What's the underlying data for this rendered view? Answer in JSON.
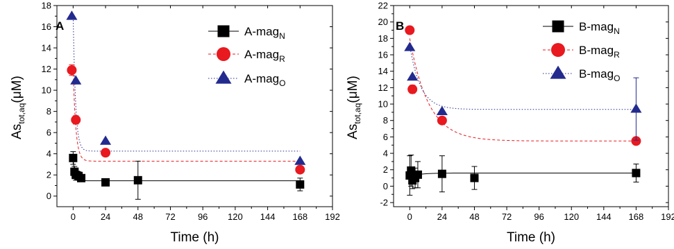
{
  "chart_data": [
    {
      "type": "scatter",
      "panel_label": "A",
      "xlabel": "Time (h)",
      "ylabel_main": "As",
      "ylabel_sub": "tot,aq",
      "ylabel_unit": "(μM)",
      "xlim": [
        -12,
        192
      ],
      "ylim": [
        -1,
        18
      ],
      "xticks": [
        0,
        24,
        48,
        72,
        96,
        120,
        144,
        168,
        192
      ],
      "yticks": [
        0,
        2,
        4,
        6,
        8,
        10,
        12,
        14,
        16,
        18
      ],
      "legend_position": "top-right",
      "series": [
        {
          "name": "A-mag",
          "name_sub": "N",
          "marker": "square",
          "color": "#000000",
          "fit_color": "#000000",
          "fit_dash": "",
          "points": [
            {
              "x": 0,
              "y": 3.6,
              "err": 0.6
            },
            {
              "x": 1,
              "y": 2.3,
              "err": 0.5
            },
            {
              "x": 2,
              "y": 2.0,
              "err": 0.5
            },
            {
              "x": 4,
              "y": 1.9,
              "err": 0.4
            },
            {
              "x": 6,
              "y": 1.7,
              "err": 0.3
            },
            {
              "x": 24,
              "y": 1.3,
              "err": 0
            },
            {
              "x": 48,
              "y": 1.5,
              "err": 1.8
            },
            {
              "x": 168,
              "y": 1.1,
              "err": 0.6
            }
          ],
          "fit": {
            "plateau": 1.45,
            "amplitude": 2.0,
            "tau": 1.5
          }
        },
        {
          "name": "A-mag",
          "name_sub": "R",
          "marker": "circle",
          "color": "#e8191f",
          "fit_color": "#e8191f",
          "fit_dash": "4,3",
          "points": [
            {
              "x": -1,
              "y": 11.9,
              "err": 0.5
            },
            {
              "x": 2,
              "y": 7.2,
              "err": 0.4
            },
            {
              "x": 24,
              "y": 4.1,
              "err": 0
            },
            {
              "x": 168,
              "y": 2.5,
              "err": 0
            }
          ],
          "fit": {
            "plateau": 3.3,
            "amplitude": 8.7,
            "tau": 2.0
          }
        },
        {
          "name": "A-mag",
          "name_sub": "O",
          "marker": "triangle",
          "color": "#232a8e",
          "fit_color": "#232a8e",
          "fit_dash": "1.5,2.5",
          "points": [
            {
              "x": -1,
              "y": 17.0,
              "err": 0
            },
            {
              "x": 2,
              "y": 10.9,
              "err": 0
            },
            {
              "x": 24,
              "y": 5.2,
              "err": 0
            },
            {
              "x": 168,
              "y": 3.3,
              "err": 0
            }
          ],
          "fit": {
            "plateau": 4.25,
            "amplitude": 12.9,
            "tau": 1.8
          }
        }
      ]
    },
    {
      "type": "scatter",
      "panel_label": "B",
      "xlabel": "Time (h)",
      "ylabel_main": "As",
      "ylabel_sub": "tot,aq",
      "ylabel_unit": "(μM)",
      "xlim": [
        -12,
        192
      ],
      "ylim": [
        -2.5,
        22
      ],
      "xticks": [
        0,
        24,
        48,
        72,
        96,
        120,
        144,
        168,
        192
      ],
      "yticks": [
        -2,
        0,
        2,
        4,
        6,
        8,
        10,
        12,
        14,
        16,
        18,
        20,
        22
      ],
      "legend_position": "top-right",
      "series": [
        {
          "name": "B-mag",
          "name_sub": "N",
          "marker": "square",
          "color": "#000000",
          "fit_color": "#000000",
          "fit_dash": "",
          "points": [
            {
              "x": 0,
              "y": 1.3,
              "err": 2.4
            },
            {
              "x": 1,
              "y": 1.9,
              "err": 1.9
            },
            {
              "x": 2,
              "y": 0.7,
              "err": 1.0
            },
            {
              "x": 4,
              "y": 1.0,
              "err": 1.2
            },
            {
              "x": 6,
              "y": 1.4,
              "err": 1.6
            },
            {
              "x": 24,
              "y": 1.5,
              "err": 2.2
            },
            {
              "x": 48,
              "y": 1.0,
              "err": 1.4
            },
            {
              "x": 168,
              "y": 1.6,
              "err": 1.1
            }
          ],
          "fit": {
            "plateau": 1.6,
            "amplitude": -0.4,
            "tau": 8
          }
        },
        {
          "name": "B-mag",
          "name_sub": "R",
          "marker": "circle",
          "color": "#e8191f",
          "fit_color": "#e8191f",
          "fit_dash": "4,3",
          "points": [
            {
              "x": 0,
              "y": 19.0,
              "err": 0
            },
            {
              "x": 2,
              "y": 11.8,
              "err": 0.5
            },
            {
              "x": 24,
              "y": 8.0,
              "err": 0
            },
            {
              "x": 168,
              "y": 5.5,
              "err": 0
            }
          ],
          "fit": {
            "plateau": 5.5,
            "amplitude": 12.5,
            "tau": 14
          }
        },
        {
          "name": "B-mag",
          "name_sub": "O",
          "marker": "triangle",
          "color": "#232a8e",
          "fit_color": "#232a8e",
          "fit_dash": "1.5,2.5",
          "points": [
            {
              "x": 0,
              "y": 16.9,
              "err": 0
            },
            {
              "x": 2,
              "y": 13.3,
              "err": 0
            },
            {
              "x": 24,
              "y": 9.1,
              "err": 0
            },
            {
              "x": 168,
              "y": 9.4,
              "err": 3.8
            }
          ],
          "fit": {
            "plateau": 9.35,
            "amplitude": 7.8,
            "tau": 8
          }
        }
      ]
    }
  ]
}
